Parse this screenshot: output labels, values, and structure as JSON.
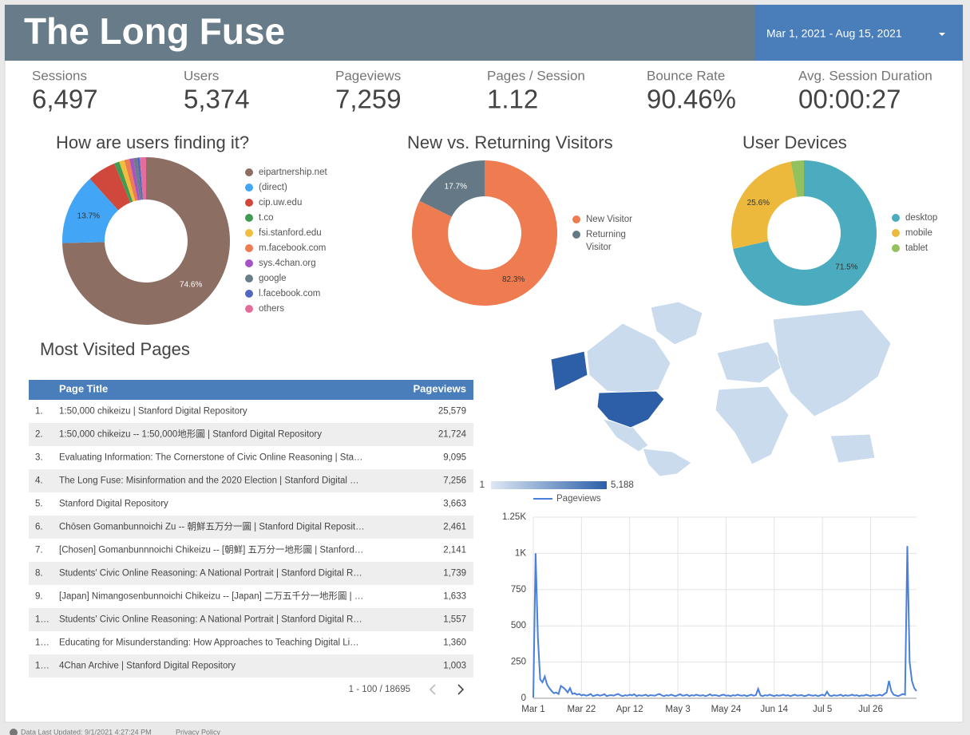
{
  "header": {
    "title": "The Long Fuse",
    "date_range": "Mar 1, 2021 - Aug 15, 2021"
  },
  "scorecards": [
    {
      "label": "Sessions",
      "value": "6,497"
    },
    {
      "label": "Users",
      "value": "5,374"
    },
    {
      "label": "Pageviews",
      "value": "7,259"
    },
    {
      "label": "Pages / Session",
      "value": "1.12"
    },
    {
      "label": "Bounce Rate",
      "value": "90.46%"
    },
    {
      "label": "Avg. Session Duration",
      "value": "00:00:27"
    }
  ],
  "chart_data": [
    {
      "type": "pie",
      "title": "How are users finding it?",
      "categories": [
        "eipartnership.net",
        "(direct)",
        "cip.uw.edu",
        "t.co",
        "fsi.stanford.edu",
        "m.facebook.com",
        "sys.4chan.org",
        "google",
        "l.facebook.com",
        "others"
      ],
      "values": [
        74.6,
        13.7,
        5.5,
        1,
        1,
        1,
        0.8,
        0.7,
        0.5,
        1.2
      ],
      "value_labels": [
        "74.6%",
        "13.7%",
        null,
        null,
        null,
        null,
        null,
        null,
        null,
        null
      ],
      "colors": [
        "#8d6e63",
        "#42a5f5",
        "#d0483b",
        "#3f9c52",
        "#f0be3c",
        "#ef7b50",
        "#a653c4",
        "#6b7c89",
        "#5467c0",
        "#e46d9b"
      ]
    },
    {
      "type": "pie",
      "title": "New vs. Returning Visitors",
      "categories": [
        "New Visitor",
        "Returning Visitor"
      ],
      "values": [
        82.3,
        17.7
      ],
      "value_labels": [
        "82.3%",
        "17.7%"
      ],
      "colors": [
        "#ef7b50",
        "#647985"
      ]
    },
    {
      "type": "pie",
      "title": "User Devices",
      "categories": [
        "desktop",
        "mobile",
        "tablet"
      ],
      "values": [
        71.5,
        25.6,
        2.9
      ],
      "value_labels": [
        "71.5%",
        "25.6%",
        null
      ],
      "colors": [
        "#4bacc0",
        "#ecb93c",
        "#93c15d"
      ]
    },
    {
      "type": "geo",
      "colorbar": {
        "min": 1,
        "max": {
          "value": 5188,
          "label": "5,188"
        }
      },
      "colors": [
        "#dde8f4",
        "#2c5fa8"
      ]
    },
    {
      "type": "line",
      "categories": [
        "Mar 1",
        null,
        null,
        null,
        null,
        null,
        null,
        null,
        null,
        null,
        null,
        null,
        null,
        null,
        null,
        null,
        null,
        null,
        null,
        null,
        null,
        "Mar 22",
        null,
        null,
        null,
        null,
        null,
        null,
        null,
        null,
        null,
        null,
        null,
        null,
        null,
        null,
        null,
        null,
        null,
        null,
        null,
        null,
        "Apr 12",
        null,
        null,
        null,
        null,
        null,
        null,
        null,
        null,
        null,
        null,
        null,
        null,
        null,
        null,
        null,
        null,
        null,
        null,
        null,
        null,
        "May 3",
        null,
        null,
        null,
        null,
        null,
        null,
        null,
        null,
        null,
        null,
        null,
        null,
        null,
        null,
        null,
        null,
        null,
        null,
        null,
        null,
        "May 24",
        null,
        null,
        null,
        null,
        null,
        null,
        null,
        null,
        null,
        null,
        null,
        null,
        null,
        null,
        null,
        null,
        null,
        null,
        null,
        null,
        "Jun 14",
        null,
        null,
        null,
        null,
        null,
        null,
        null,
        null,
        null,
        null,
        null,
        null,
        null,
        null,
        null,
        null,
        null,
        null,
        null,
        null,
        "Jul 5",
        null,
        null,
        null,
        null,
        null,
        null,
        null,
        null,
        null,
        null,
        null,
        null,
        null,
        null,
        null,
        null,
        null,
        null,
        null,
        null,
        "Jul 26",
        null,
        null,
        null,
        null,
        null,
        null,
        null,
        null,
        null,
        null,
        null,
        null,
        null,
        null,
        null,
        null,
        null,
        null,
        null,
        null
      ],
      "series": [
        {
          "name": "Pageviews",
          "color": "#4a7fdb",
          "values": [
            5,
            1000,
            420,
            130,
            110,
            150,
            95,
            70,
            50,
            35,
            40,
            30,
            85,
            75,
            60,
            40,
            70,
            30,
            35,
            25,
            30,
            20,
            25,
            18,
            22,
            30,
            15,
            20,
            25,
            18,
            22,
            28,
            15,
            20,
            22,
            18,
            25,
            30,
            20,
            15,
            22,
            18,
            25,
            20,
            28,
            15,
            22,
            18,
            20,
            25,
            15,
            22,
            20,
            18,
            25,
            30,
            20,
            15,
            22,
            18,
            25,
            20,
            15,
            22,
            28,
            18,
            20,
            25,
            15,
            22,
            18,
            25,
            20,
            18,
            22,
            15,
            20,
            28,
            18,
            22,
            20,
            15,
            22,
            25,
            18,
            20,
            15,
            22,
            18,
            25,
            20,
            18,
            22,
            15,
            20,
            25,
            18,
            22,
            65,
            20,
            15,
            22,
            18,
            25,
            20,
            15,
            22,
            18,
            20,
            25,
            18,
            22,
            15,
            20,
            25,
            18,
            20,
            22,
            15,
            18,
            25,
            20,
            18,
            22,
            15,
            20,
            25,
            18,
            45,
            20,
            15,
            22,
            18,
            20,
            25,
            15,
            22,
            18,
            20,
            25,
            18,
            22,
            15,
            20,
            18,
            25,
            20,
            15,
            22,
            18,
            20,
            25,
            18,
            30,
            40,
            120,
            50,
            25,
            20,
            15,
            22,
            30,
            25,
            1050,
            250,
            120,
            70,
            50
          ]
        }
      ],
      "ylim": [
        0,
        1250
      ],
      "yticks": [
        0,
        250,
        500,
        750,
        {
          "value": 1000,
          "label": "1K"
        },
        {
          "value": 1250,
          "label": "1.25K"
        }
      ],
      "grid": true,
      "legend": "top"
    }
  ],
  "table": {
    "title": "Most Visited Pages",
    "columns": [
      "Page Title",
      "Pageviews"
    ],
    "rows": [
      [
        "1.",
        "1:50,000 chikeizu | Stanford Digital Repository",
        "25,579"
      ],
      [
        "2.",
        "1:50,000 chikeizu -- 1:50,000地形圖 | Stanford Digital Repository",
        "21,724"
      ],
      [
        "3.",
        "Evaluating Information: The Cornerstone of Civic Online Reasoning | Sta…",
        "9,095"
      ],
      [
        "4.",
        "The Long Fuse: Misinformation and the 2020 Election | Stanford Digital …",
        "7,256"
      ],
      [
        "5.",
        "Stanford Digital Repository",
        "3,663"
      ],
      [
        "6.",
        "Chōsen Gomanbunnoichi Zu -- 朝鮮五万分一圖 | Stanford Digital Reposit…",
        "2,461"
      ],
      [
        "7.",
        "[Chosen] Gomanbunnnoichi Chikeizu -- [朝鮮] 五万分一地形圖 | Stanford…",
        "2,141"
      ],
      [
        "8.",
        "Students' Civic Online Reasoning: A National Portrait | Stanford Digital R…",
        "1,739"
      ],
      [
        "9.",
        "[Japan] Nimangosenbunnoichi Chikeizu -- [Japan] 二万五千分一地形圖 | …",
        "1,633"
      ],
      [
        "1…",
        "Students' Civic Online Reasoning: A National Portrait | Stanford Digital R…",
        "1,557"
      ],
      [
        "1…",
        "Educating for Misunderstanding: How Approaches to Teaching Digital Li…",
        "1,360"
      ],
      [
        "1…",
        "4Chan Archive | Stanford Digital Repository",
        "1,003"
      ]
    ],
    "pagination": "1 - 100 / 18695"
  },
  "footer": {
    "updated": "Data Last Updated: 9/1/2021 4:27:24 PM",
    "privacy": "Privacy Policy"
  }
}
